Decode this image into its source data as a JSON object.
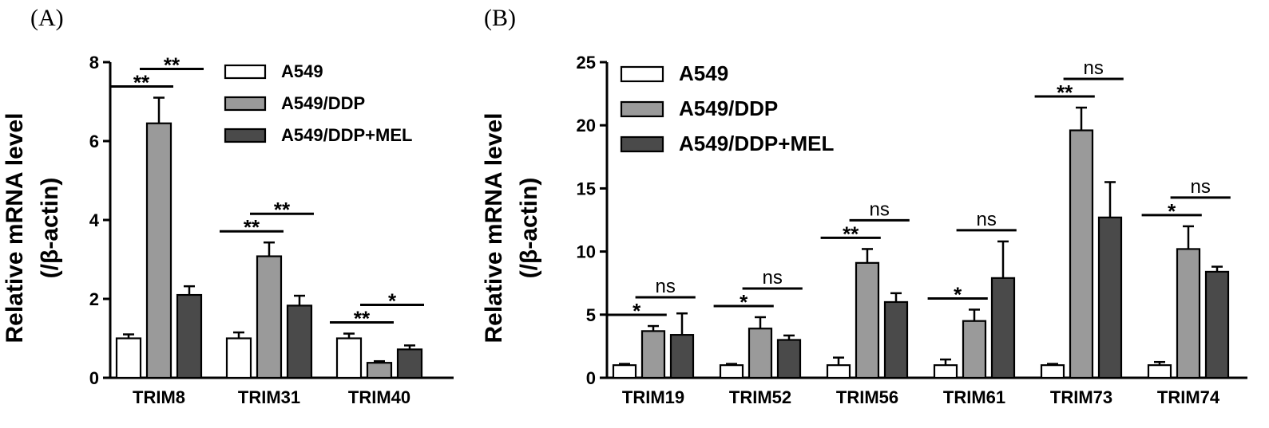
{
  "chart_data": [
    {
      "panel": "(A)",
      "type": "bar",
      "ylabel": "Relative mRNA level",
      "ylabel_line2": "(/β-actin)",
      "ylim": [
        0,
        8
      ],
      "yticks": [
        "0",
        "2",
        "4",
        "6",
        "8"
      ],
      "categories": [
        "TRIM8",
        "TRIM31",
        "TRIM40"
      ],
      "legend_position": "top-right",
      "series": [
        {
          "name": "A549",
          "color": "#ffffff",
          "values": [
            1.0,
            1.0,
            1.0
          ],
          "errors": [
            0.1,
            0.15,
            0.12
          ]
        },
        {
          "name": "A549/DDP",
          "color": "#9a9a9a",
          "values": [
            6.45,
            3.08,
            0.38
          ],
          "errors": [
            0.65,
            0.35,
            0.04
          ]
        },
        {
          "name": "A549/DDP+MEL",
          "color": "#4a4a4a",
          "values": [
            2.1,
            1.83,
            0.72
          ],
          "errors": [
            0.22,
            0.25,
            0.1
          ]
        }
      ],
      "significance": [
        {
          "category": "TRIM8",
          "compare": "A549 vs A549/DDP",
          "label": "**"
        },
        {
          "category": "TRIM8",
          "compare": "A549/DDP vs A549/DDP+MEL",
          "label": "**"
        },
        {
          "category": "TRIM31",
          "compare": "A549 vs A549/DDP",
          "label": "**"
        },
        {
          "category": "TRIM31",
          "compare": "A549/DDP vs A549/DDP+MEL",
          "label": "**"
        },
        {
          "category": "TRIM40",
          "compare": "A549 vs A549/DDP",
          "label": "**"
        },
        {
          "category": "TRIM40",
          "compare": "A549/DDP vs A549/DDP+MEL",
          "label": "*"
        }
      ]
    },
    {
      "panel": "(B)",
      "type": "bar",
      "ylabel": "Relative mRNA level",
      "ylabel_line2": "(/β-actin)",
      "ylim": [
        0,
        25
      ],
      "yticks": [
        "0",
        "5",
        "10",
        "15",
        "20",
        "25"
      ],
      "categories": [
        "TRIM19",
        "TRIM52",
        "TRIM56",
        "TRIM61",
        "TRIM73",
        "TRIM74"
      ],
      "legend_position": "top-left",
      "series": [
        {
          "name": "A549",
          "color": "#ffffff",
          "values": [
            1.0,
            1.0,
            1.0,
            1.0,
            1.0,
            1.0
          ],
          "errors": [
            0.1,
            0.1,
            0.6,
            0.45,
            0.1,
            0.25
          ]
        },
        {
          "name": "A549/DDP",
          "color": "#9a9a9a",
          "values": [
            3.7,
            3.9,
            9.1,
            4.5,
            19.6,
            10.2
          ],
          "errors": [
            0.4,
            0.9,
            1.1,
            0.9,
            1.8,
            1.8
          ]
        },
        {
          "name": "A549/DDP+MEL",
          "color": "#4a4a4a",
          "values": [
            3.4,
            3.0,
            6.0,
            7.9,
            12.7,
            8.4
          ],
          "errors": [
            1.7,
            0.35,
            0.7,
            2.9,
            2.8,
            0.4
          ]
        }
      ],
      "significance": [
        {
          "category": "TRIM19",
          "compare": "A549 vs A549/DDP",
          "label": "*"
        },
        {
          "category": "TRIM19",
          "compare": "A549/DDP vs A549/DDP+MEL",
          "label": "ns"
        },
        {
          "category": "TRIM52",
          "compare": "A549 vs A549/DDP",
          "label": "*"
        },
        {
          "category": "TRIM52",
          "compare": "A549/DDP vs A549/DDP+MEL",
          "label": "ns"
        },
        {
          "category": "TRIM56",
          "compare": "A549 vs A549/DDP",
          "label": "**"
        },
        {
          "category": "TRIM56",
          "compare": "A549/DDP vs A549/DDP+MEL",
          "label": "ns"
        },
        {
          "category": "TRIM61",
          "compare": "A549 vs A549/DDP",
          "label": "*"
        },
        {
          "category": "TRIM61",
          "compare": "A549/DDP vs A549/DDP+MEL",
          "label": "ns"
        },
        {
          "category": "TRIM73",
          "compare": "A549 vs A549/DDP",
          "label": "**"
        },
        {
          "category": "TRIM73",
          "compare": "A549/DDP vs A549/DDP+MEL",
          "label": "ns"
        },
        {
          "category": "TRIM74",
          "compare": "A549 vs A549/DDP",
          "label": "*"
        },
        {
          "category": "TRIM74",
          "compare": "A549/DDP vs A549/DDP+MEL",
          "label": "ns"
        }
      ]
    }
  ]
}
